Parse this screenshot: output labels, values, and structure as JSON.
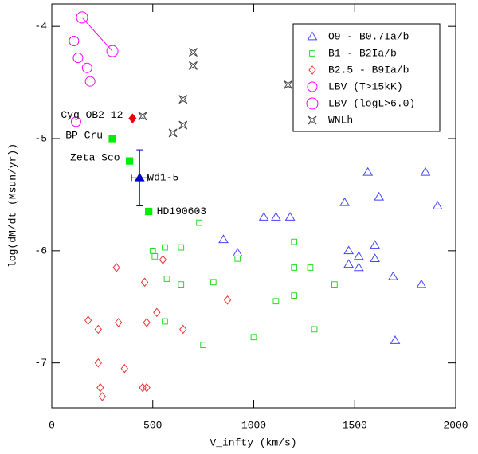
{
  "chart_data": {
    "type": "scatter",
    "xlabel": "V_infty (km/s)",
    "ylabel": "log(dM/dt (Msun/yr))",
    "xlim": [
      0,
      2000
    ],
    "ylim": [
      -7.4,
      -3.8
    ],
    "xticks": [
      0,
      500,
      1000,
      1500,
      2000
    ],
    "yticks": [
      -4,
      -5,
      -6,
      -7
    ],
    "legend": "upper right",
    "series": [
      {
        "name": "O9 - B0.7Ia/b",
        "color": "#4444ff",
        "marker": "triangle",
        "x": [
          1565,
          1850,
          1620,
          1450,
          1910,
          1050,
          1110,
          1180,
          850,
          920,
          1600,
          1470,
          1520,
          1600,
          1470,
          1520,
          1690,
          1830,
          1700
        ],
        "values": [
          -5.3,
          -5.3,
          -5.52,
          -5.57,
          -5.6,
          -5.7,
          -5.7,
          -5.7,
          -5.9,
          -6.02,
          -5.95,
          -6.0,
          -6.05,
          -6.07,
          -6.12,
          -6.15,
          -6.23,
          -6.3,
          -6.8
        ]
      },
      {
        "name": "B1 - B2Ia/b",
        "color": "#22dd22",
        "marker": "square",
        "x": [
          730,
          560,
          640,
          500,
          510,
          1200,
          920,
          1200,
          1280,
          570,
          640,
          800,
          1400,
          1200,
          1110,
          560,
          1300,
          1000,
          750
        ],
        "values": [
          -5.75,
          -5.97,
          -5.97,
          -6.0,
          -6.05,
          -5.92,
          -6.07,
          -6.15,
          -6.15,
          -6.25,
          -6.3,
          -6.28,
          -6.3,
          -6.4,
          -6.45,
          -6.63,
          -6.7,
          -6.77,
          -6.84
        ]
      },
      {
        "name": "B2.5 - B9Ia/b",
        "color": "#ee3333",
        "marker": "diamond",
        "x": [
          320,
          550,
          460,
          870,
          520,
          180,
          330,
          470,
          230,
          650,
          230,
          360,
          240,
          450,
          470,
          250
        ],
        "values": [
          -6.15,
          -6.08,
          -6.28,
          -6.44,
          -6.55,
          -6.62,
          -6.64,
          -6.64,
          -6.7,
          -6.7,
          -7.0,
          -7.05,
          -7.22,
          -7.22,
          -7.22,
          -7.3
        ]
      },
      {
        "name": "LBV (T>15kK)",
        "color": "#ff00ff",
        "marker": "circle",
        "x": [
          110,
          130,
          175,
          190,
          120
        ],
        "values": [
          -4.13,
          -4.28,
          -4.37,
          -4.49,
          -4.85
        ]
      },
      {
        "name": "LBV (logL>6.0)",
        "color": "#ff00ff",
        "marker": "circle",
        "connect": true,
        "x": [
          150,
          300
        ],
        "values": [
          -3.92,
          -4.22
        ]
      },
      {
        "name": "WNLh",
        "color": "#444444",
        "marker": "star",
        "x": [
          700,
          700,
          1170,
          650,
          450,
          600,
          650
        ],
        "values": [
          -4.23,
          -4.35,
          -4.52,
          -4.65,
          -4.8,
          -4.95,
          -4.88
        ]
      }
    ],
    "highlights": [
      {
        "label": "Cyg OB2 12",
        "x": 400,
        "y": -4.82,
        "color": "#ee0000",
        "marker": "diamond"
      },
      {
        "label": "BP Cru",
        "x": 300,
        "y": -5.0,
        "color": "#00ee00",
        "marker": "square"
      },
      {
        "label": "Zeta Sco",
        "x": 385,
        "y": -5.2,
        "color": "#00ee00",
        "marker": "square"
      },
      {
        "label": "Wd1-5",
        "x": 435,
        "y": -5.35,
        "color": "#0000cc",
        "marker": "triangle",
        "xerr": 40,
        "yerr": 0.25
      },
      {
        "label": "HD190603",
        "x": 480,
        "y": -5.65,
        "color": "#00ee00",
        "marker": "square"
      }
    ]
  }
}
